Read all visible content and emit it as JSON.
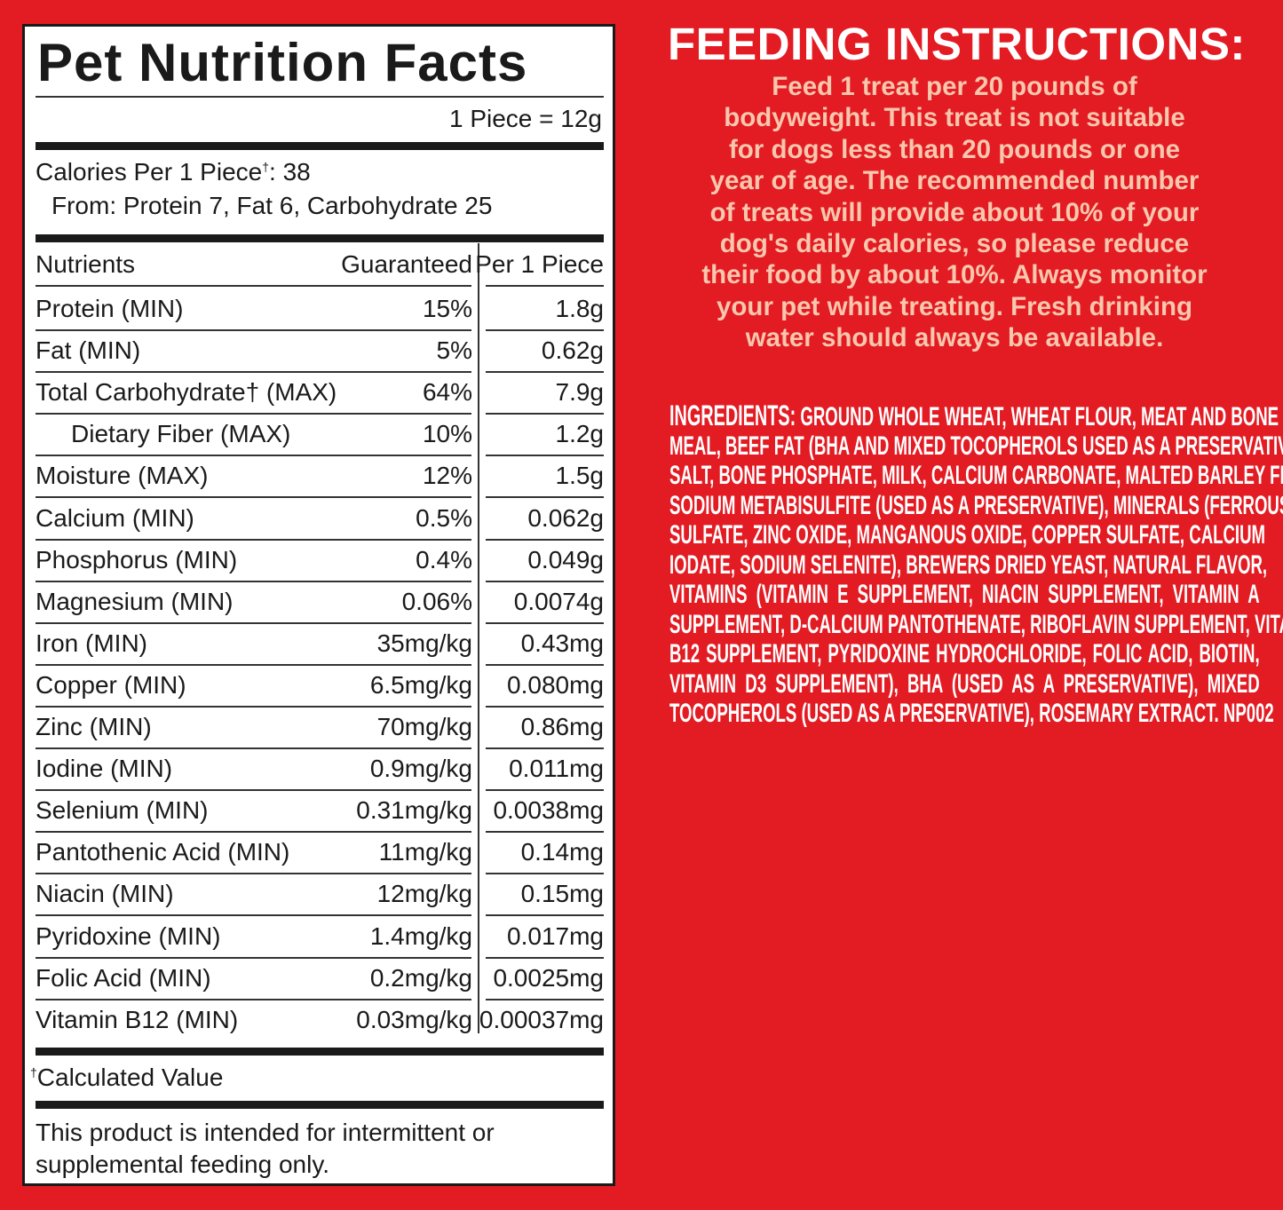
{
  "label": {
    "title": "Pet Nutrition Facts",
    "serving": "1 Piece = 12g",
    "calories_prefix": "Calories Per 1 Piece",
    "dagger": "†",
    "calories_value": ": 38",
    "calories_from": "From: Protein 7, Fat 6, Carbohydrate 25",
    "headers": {
      "nutrients": "Nutrients",
      "guaranteed": "Guaranteed",
      "per_piece": "Per 1 Piece"
    },
    "rows": [
      {
        "name": "Protein (MIN)",
        "guaranteed": "15%",
        "per_piece": "1.8g"
      },
      {
        "name": "Fat (MIN)",
        "guaranteed": "5%",
        "per_piece": "0.62g"
      },
      {
        "name": "Total Carbohydrate† (MAX)",
        "guaranteed": "64%",
        "per_piece": "7.9g"
      },
      {
        "name": "Dietary Fiber (MAX)",
        "guaranteed": "10%",
        "per_piece": "1.2g"
      },
      {
        "name": "Moisture (MAX)",
        "guaranteed": "12%",
        "per_piece": "1.5g"
      },
      {
        "name": "Calcium (MIN)",
        "guaranteed": "0.5%",
        "per_piece": "0.062g"
      },
      {
        "name": "Phosphorus (MIN)",
        "guaranteed": "0.4%",
        "per_piece": "0.049g"
      },
      {
        "name": "Magnesium (MIN)",
        "guaranteed": "0.06%",
        "per_piece": "0.0074g"
      },
      {
        "name": "Iron (MIN)",
        "guaranteed": "35mg/kg",
        "per_piece": "0.43mg"
      },
      {
        "name": "Copper (MIN)",
        "guaranteed": "6.5mg/kg",
        "per_piece": "0.080mg"
      },
      {
        "name": "Zinc (MIN)",
        "guaranteed": "70mg/kg",
        "per_piece": "0.86mg"
      },
      {
        "name": "Iodine (MIN)",
        "guaranteed": "0.9mg/kg",
        "per_piece": "0.011mg"
      },
      {
        "name": "Selenium (MIN)",
        "guaranteed": "0.31mg/kg",
        "per_piece": "0.0038mg"
      },
      {
        "name": "Pantothenic Acid (MIN)",
        "guaranteed": "11mg/kg",
        "per_piece": "0.14mg"
      },
      {
        "name": "Niacin (MIN)",
        "guaranteed": "12mg/kg",
        "per_piece": "0.15mg"
      },
      {
        "name": "Pyridoxine (MIN)",
        "guaranteed": "1.4mg/kg",
        "per_piece": "0.017mg"
      },
      {
        "name": "Folic Acid (MIN)",
        "guaranteed": "0.2mg/kg",
        "per_piece": "0.0025mg"
      },
      {
        "name": "Vitamin B12 (MIN)",
        "guaranteed": "0.03mg/kg",
        "per_piece": "0.00037mg"
      }
    ],
    "footnote_text": "Calculated Value",
    "note": "This product is intended for intermittent or supplemental feeding only."
  },
  "feeding": {
    "title": "FEEDING INSTRUCTIONS:",
    "lines": [
      "Feed 1 treat per 20 pounds of",
      "bodyweight. This treat is not suitable",
      "for dogs less than 20 pounds or one",
      "year of age. The recommended number",
      "of treats will provide about 10% of your",
      "dog's daily calories, so please reduce",
      "their food by about 10%. Always monitor",
      "your pet while treating. Fresh drinking",
      "water should always be available."
    ]
  },
  "ingredients": {
    "label": "INGREDIENTS:",
    "lines": [
      "GROUND WHOLE WHEAT, WHEAT FLOUR, MEAT AND BONE",
      "MEAL, BEEF FAT (BHA AND MIXED TOCOPHEROLS USED AS A PRESERVATIVE),",
      "SALT, BONE PHOSPHATE, MILK, CALCIUM CARBONATE, MALTED BARLEY FLOUR,",
      "SODIUM METABISULFITE (USED AS A PRESERVATIVE), MINERALS (FERROUS",
      "SULFATE, ZINC OXIDE, MANGANOUS OXIDE, COPPER SULFATE, CALCIUM",
      "IODATE, SODIUM SELENITE), BREWERS DRIED YEAST, NATURAL FLAVOR,",
      "VITAMINS (VITAMIN E SUPPLEMENT, NIACIN SUPPLEMENT, VITAMIN A",
      "SUPPLEMENT, D-CALCIUM PANTOTHENATE, RIBOFLAVIN SUPPLEMENT, VITAMIN",
      "B12 SUPPLEMENT, PYRIDOXINE HYDROCHLORIDE, FOLIC ACID, BIOTIN,",
      "VITAMIN D3 SUPPLEMENT), BHA (USED AS A PRESERVATIVE), MIXED",
      "TOCOPHEROLS (USED AS A PRESERVATIVE), ROSEMARY EXTRACT."
    ],
    "code": "NP002"
  },
  "colors": {
    "background": "#e31b23",
    "feeding_text": "#f8c7ae",
    "panel": "#ffffff",
    "ink": "#1a1a1a"
  }
}
